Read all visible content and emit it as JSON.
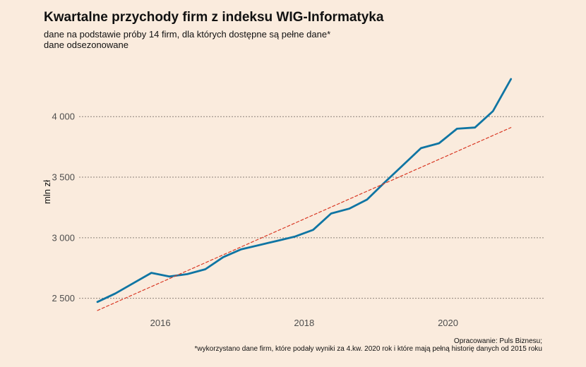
{
  "title": "Kwartalne przychody firm z indeksu WIG-Informatyka",
  "subtitle_line1": "dane na podstawie próby 14 firm, dla których dostępne są pełne dane*",
  "subtitle_line2": "dane odsezonowane",
  "caption_line1": "Opracowanie: Puls Biznesu;",
  "caption_line2": "*wykorzystano dane firm, które podały wyniki za 4.kw. 2020 rok i które mają pełną historię danych od 2015 roku",
  "colors": {
    "background": "#faebdd",
    "series": "#0f75a3",
    "trend": "#d93a26",
    "grid": "#8c8279"
  },
  "chart_data": {
    "type": "line",
    "title": "Kwartalne przychody firm z indeksu WIG-Informatyka",
    "ylabel": "mln zł",
    "xlabel": "",
    "x_ticks": [
      2016,
      2018,
      2020
    ],
    "y_ticks": [
      2500,
      3000,
      3500,
      4000
    ],
    "y_tick_labels": [
      "2 500",
      "3 000",
      "3 500",
      "4 000"
    ],
    "xlim": [
      2014.87,
      2021.33
    ],
    "ylim": [
      2370,
      4380
    ],
    "grid": "horizontal dotted",
    "legend": "none",
    "series": [
      {
        "style": "solid",
        "x": [
          2015.125,
          2015.375,
          2015.625,
          2015.875,
          2016.125,
          2016.375,
          2016.625,
          2016.875,
          2017.125,
          2017.375,
          2017.625,
          2017.875,
          2018.125,
          2018.375,
          2018.625,
          2018.875,
          2019.125,
          2019.375,
          2019.625,
          2019.875,
          2020.125,
          2020.375,
          2020.625,
          2020.875
        ],
        "values": [
          2470,
          2540,
          2625,
          2710,
          2680,
          2700,
          2740,
          2840,
          2905,
          2940,
          2975,
          3010,
          3065,
          3200,
          3240,
          3315,
          3460,
          3600,
          3740,
          3780,
          3900,
          3910,
          4045,
          4310
        ]
      },
      {
        "style": "dashed",
        "x": [
          2015.125,
          2020.875
        ],
        "values": [
          2400,
          3910
        ]
      }
    ]
  }
}
